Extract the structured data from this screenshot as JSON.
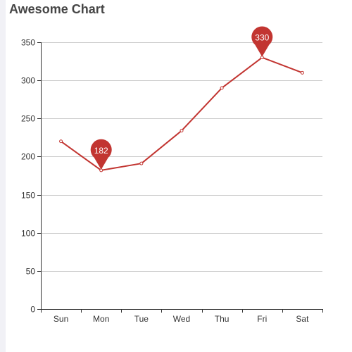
{
  "chart_data": {
    "type": "line",
    "title": "Awesome Chart",
    "categories": [
      "Sun",
      "Mon",
      "Tue",
      "Wed",
      "Thu",
      "Fri",
      "Sat"
    ],
    "values": [
      220,
      182,
      191,
      234,
      290,
      330,
      310
    ],
    "ylim": [
      0,
      350
    ],
    "yticks": [
      0,
      50,
      100,
      150,
      200,
      250,
      300,
      350
    ],
    "grid": true,
    "markers": [
      {
        "category": "Mon",
        "value": 182,
        "label": "182"
      },
      {
        "category": "Fri",
        "value": 330,
        "label": "330"
      }
    ],
    "colors": {
      "line": "#c23531",
      "pin": "#c23531",
      "grid": "#cccccc",
      "axis": "#333333"
    }
  }
}
